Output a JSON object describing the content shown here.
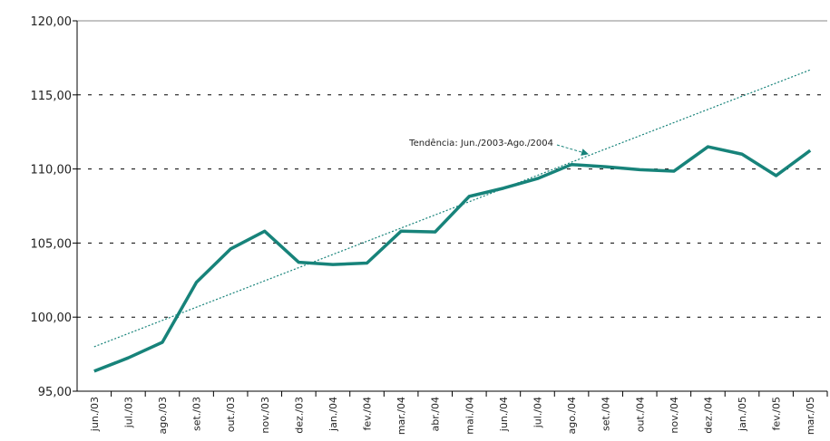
{
  "chart_data": {
    "type": "line",
    "categories": [
      "jun./03",
      "jul./03",
      "ago./03",
      "set./03",
      "out./03",
      "nov./03",
      "dez./03",
      "jan./04",
      "fev./04",
      "mar./04",
      "abr./04",
      "mai./04",
      "jun./04",
      "jul./04",
      "ago./04",
      "set./04",
      "out./04",
      "nov./04",
      "dez./04",
      "jan./05",
      "fev./05",
      "mar./05"
    ],
    "series": [
      {
        "color": "#17837a",
        "style": "solid",
        "values": [
          96.35,
          97.25,
          98.3,
          102.35,
          104.6,
          105.8,
          103.7,
          103.55,
          103.65,
          105.8,
          105.75,
          108.15,
          108.7,
          109.35,
          110.3,
          110.15,
          109.95,
          109.85,
          111.5,
          111.0,
          109.55,
          111.25
        ]
      },
      {
        "color": "#17837a",
        "style": "dotted",
        "values": [
          98.0,
          98.89,
          99.78,
          100.67,
          101.56,
          102.45,
          103.34,
          104.23,
          105.12,
          106.01,
          106.9,
          107.79,
          108.68,
          109.57,
          110.46,
          111.35,
          112.24,
          113.13,
          114.02,
          114.91,
          115.8,
          116.69
        ]
      }
    ],
    "annotation": "Tendência: Jun./2003-Ago./2004",
    "ylim": [
      95,
      120
    ],
    "yticks": [
      {
        "value": 95,
        "label": "95,00"
      },
      {
        "value": 100,
        "label": "100,00"
      },
      {
        "value": 105,
        "label": "105,00"
      },
      {
        "value": 110,
        "label": "110,00"
      },
      {
        "value": 115,
        "label": "115,00"
      },
      {
        "value": 120,
        "label": "120,00"
      }
    ],
    "grid": true
  }
}
